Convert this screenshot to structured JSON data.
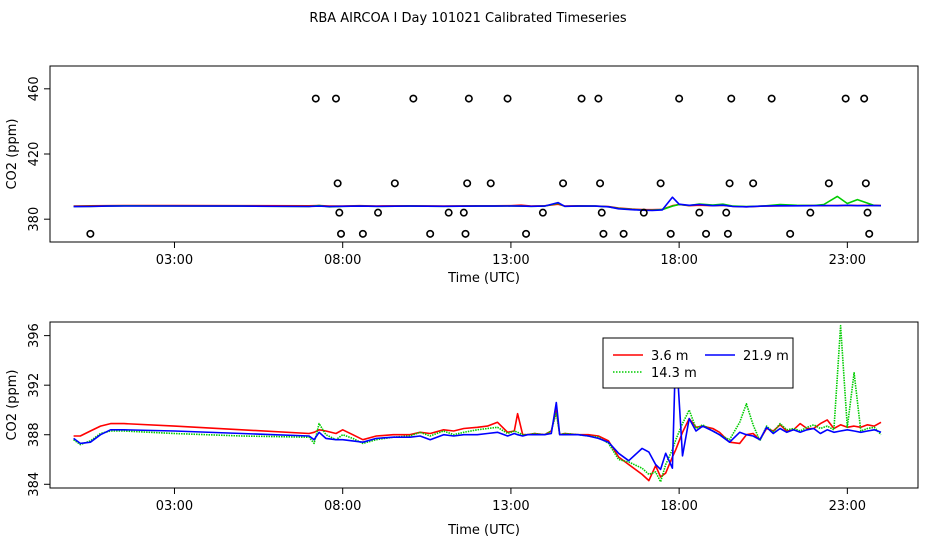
{
  "title": "RBA AIRCOA I  Day 101021  Calibrated Timeseries",
  "chart_data": [
    {
      "type": "line",
      "xlabel": "Time (UTC)",
      "ylabel": "CO2 (ppm)",
      "xlim": [
        -0.7,
        25.1
      ],
      "ylim": [
        366,
        474
      ],
      "xticks": [
        3,
        8,
        13,
        18,
        23
      ],
      "xtick_labels": [
        "03:00",
        "08:00",
        "13:00",
        "18:00",
        "23:00"
      ],
      "yticks": [
        380,
        420,
        460
      ],
      "ytick_labels": [
        "380",
        "420",
        "460"
      ],
      "grid": false,
      "calibration_points": [
        {
          "x": 0.5,
          "y": 371
        },
        {
          "x": 7.2,
          "y": 454
        },
        {
          "x": 7.8,
          "y": 454
        },
        {
          "x": 7.85,
          "y": 402
        },
        {
          "x": 7.9,
          "y": 384
        },
        {
          "x": 7.95,
          "y": 371
        },
        {
          "x": 8.6,
          "y": 371
        },
        {
          "x": 9.05,
          "y": 384
        },
        {
          "x": 9.55,
          "y": 402
        },
        {
          "x": 10.1,
          "y": 454
        },
        {
          "x": 10.6,
          "y": 371
        },
        {
          "x": 11.15,
          "y": 384
        },
        {
          "x": 11.6,
          "y": 384
        },
        {
          "x": 11.65,
          "y": 371
        },
        {
          "x": 11.7,
          "y": 402
        },
        {
          "x": 11.75,
          "y": 454
        },
        {
          "x": 12.4,
          "y": 402
        },
        {
          "x": 12.9,
          "y": 454
        },
        {
          "x": 13.45,
          "y": 371
        },
        {
          "x": 13.95,
          "y": 384
        },
        {
          "x": 14.55,
          "y": 402
        },
        {
          "x": 15.1,
          "y": 454
        },
        {
          "x": 15.6,
          "y": 454
        },
        {
          "x": 15.65,
          "y": 402
        },
        {
          "x": 15.7,
          "y": 384
        },
        {
          "x": 15.75,
          "y": 371
        },
        {
          "x": 16.35,
          "y": 371
        },
        {
          "x": 16.95,
          "y": 384
        },
        {
          "x": 17.45,
          "y": 402
        },
        {
          "x": 17.75,
          "y": 371
        },
        {
          "x": 18.0,
          "y": 454
        },
        {
          "x": 18.6,
          "y": 384
        },
        {
          "x": 18.8,
          "y": 371
        },
        {
          "x": 19.4,
          "y": 384
        },
        {
          "x": 19.45,
          "y": 371
        },
        {
          "x": 19.5,
          "y": 402
        },
        {
          "x": 19.55,
          "y": 454
        },
        {
          "x": 20.2,
          "y": 402
        },
        {
          "x": 20.75,
          "y": 454
        },
        {
          "x": 21.3,
          "y": 371
        },
        {
          "x": 21.9,
          "y": 384
        },
        {
          "x": 22.45,
          "y": 402
        },
        {
          "x": 22.95,
          "y": 454
        },
        {
          "x": 23.5,
          "y": 454
        },
        {
          "x": 23.55,
          "y": 402
        },
        {
          "x": 23.6,
          "y": 384
        },
        {
          "x": 23.65,
          "y": 371
        }
      ],
      "series": [
        {
          "name": "3.6 m",
          "color": "#ff0000",
          "x": [
            0,
            0.5,
            1,
            1.5,
            3,
            5,
            7,
            7.3,
            7.6,
            8,
            8.5,
            9,
            10,
            11,
            12,
            12.5,
            13,
            13.3,
            13.6,
            14,
            14.4,
            14.6,
            15,
            15.5,
            15.9,
            16.2,
            16.6,
            16.9,
            17.2,
            17.5,
            17.8,
            18.0,
            18.3,
            18.6,
            19.0,
            19.3,
            19.6,
            20.0,
            20.5,
            21,
            21.5,
            22,
            22.3,
            22.7,
            23,
            23.3,
            23.8,
            24
          ],
          "y": [
            388,
            388.2,
            388.3,
            388.4,
            388.4,
            388.3,
            388.2,
            388.4,
            388.0,
            388.1,
            388.3,
            388.1,
            388.2,
            388.1,
            388.2,
            388.2,
            388.3,
            388.6,
            388.1,
            388.2,
            389.2,
            388.1,
            388.2,
            388.1,
            387.8,
            386.8,
            386.2,
            385.9,
            385.8,
            386.0,
            388.3,
            389.0,
            388.3,
            388.6,
            388.3,
            388.5,
            387.9,
            387.6,
            388.0,
            388.2,
            388.3,
            388.4,
            388.3,
            388.4,
            388.5,
            388.4,
            388.5,
            388.4
          ]
        },
        {
          "name": "14.3 m",
          "color": "#00cc00",
          "x": [
            0,
            0.5,
            1,
            1.5,
            3,
            5,
            7,
            7.3,
            7.6,
            8,
            8.5,
            9,
            10,
            11,
            12,
            12.5,
            13,
            13.3,
            13.6,
            14,
            14.4,
            14.6,
            15,
            15.5,
            15.9,
            16.2,
            16.6,
            16.9,
            17.2,
            17.5,
            17.8,
            18.0,
            18.3,
            18.6,
            19.0,
            19.3,
            19.6,
            20.0,
            20.5,
            21,
            21.5,
            22,
            22.3,
            22.7,
            23,
            23.3,
            23.8,
            24
          ],
          "y": [
            387.8,
            387.9,
            388.0,
            388.2,
            388.1,
            388.0,
            387.8,
            388.4,
            387.6,
            387.9,
            388.0,
            387.9,
            388.0,
            387.9,
            388.0,
            388.0,
            388.1,
            388.0,
            387.9,
            388.0,
            389.8,
            387.9,
            388.0,
            388.0,
            387.6,
            386.6,
            386.0,
            385.6,
            385.5,
            385.9,
            388.0,
            389.0,
            388.4,
            389.3,
            388.7,
            389.2,
            388.0,
            387.7,
            388.1,
            389.0,
            388.5,
            388.4,
            389.0,
            394.0,
            389.6,
            392.0,
            388.4,
            388.3
          ]
        },
        {
          "name": "21.9 m",
          "color": "#0000ff",
          "x": [
            0,
            0.5,
            1,
            1.5,
            3,
            5,
            7,
            7.3,
            7.6,
            8,
            8.5,
            9,
            10,
            11,
            12,
            12.5,
            13,
            13.3,
            13.6,
            14,
            14.4,
            14.6,
            15,
            15.5,
            15.9,
            16.2,
            16.6,
            16.9,
            17.2,
            17.5,
            17.8,
            18.0,
            18.3,
            18.6,
            19.0,
            19.3,
            19.6,
            20.0,
            20.5,
            21,
            21.5,
            22,
            22.3,
            22.7,
            23,
            23.3,
            23.8,
            24
          ],
          "y": [
            387.7,
            387.8,
            388.0,
            388.1,
            388.1,
            388.0,
            387.8,
            388.0,
            387.7,
            387.9,
            388.0,
            387.9,
            388.0,
            387.9,
            388.0,
            388.0,
            388.1,
            388.0,
            387.9,
            388.0,
            390.2,
            387.9,
            388.0,
            388.0,
            387.6,
            386.4,
            385.8,
            385.5,
            385.3,
            385.7,
            393.5,
            389.2,
            388.5,
            389.0,
            388.3,
            388.6,
            387.8,
            387.6,
            388.0,
            388.3,
            388.2,
            388.3,
            388.4,
            388.3,
            388.5,
            388.3,
            388.4,
            388.3
          ]
        }
      ]
    },
    {
      "type": "line",
      "xlabel": "Time (UTC)",
      "ylabel": "CO2 (ppm)",
      "xlim": [
        -0.7,
        25.1
      ],
      "ylim": [
        383.7,
        397.1
      ],
      "xticks": [
        3,
        8,
        13,
        18,
        23
      ],
      "xtick_labels": [
        "03:00",
        "08:00",
        "13:00",
        "18:00",
        "23:00"
      ],
      "yticks": [
        384,
        388,
        392,
        396
      ],
      "ytick_labels": [
        "384",
        "388",
        "392",
        "396"
      ],
      "grid": false,
      "legend": "top-right",
      "series": [
        {
          "name": "3.6 m",
          "color": "#ff0000",
          "x": [
            0,
            0.2,
            0.5,
            0.8,
            1.1,
            1.5,
            3,
            5,
            7,
            7.15,
            7.3,
            7.5,
            7.8,
            8.0,
            8.3,
            8.6,
            9,
            9.5,
            10,
            10.3,
            10.6,
            11,
            11.3,
            11.6,
            12,
            12.3,
            12.6,
            12.9,
            13.1,
            13.2,
            13.35,
            13.5,
            13.7,
            14,
            14.2,
            14.35,
            14.45,
            14.6,
            15,
            15.3,
            15.6,
            15.9,
            16.2,
            16.5,
            16.9,
            17.1,
            17.3,
            17.45,
            17.6,
            17.8,
            17.9,
            18.1,
            18.3,
            18.5,
            18.7,
            19.0,
            19.2,
            19.5,
            19.8,
            20.0,
            20.2,
            20.4,
            20.6,
            20.8,
            21.0,
            21.2,
            21.4,
            21.6,
            21.8,
            22.0,
            22.2,
            22.4,
            22.6,
            22.8,
            23.0,
            23.2,
            23.4,
            23.6,
            23.8,
            24.0
          ],
          "y": [
            387.9,
            387.9,
            388.3,
            388.7,
            388.9,
            388.9,
            388.7,
            388.4,
            388.1,
            388.2,
            388.4,
            388.3,
            388.1,
            388.4,
            388.0,
            387.6,
            387.9,
            388.0,
            388.0,
            388.2,
            388.1,
            388.4,
            388.3,
            388.5,
            388.6,
            388.7,
            389.0,
            388.2,
            388.3,
            389.7,
            388.0,
            388.0,
            388.1,
            388.0,
            388.3,
            390.0,
            388.0,
            388.1,
            388.0,
            388.0,
            387.9,
            387.5,
            386.2,
            385.6,
            384.8,
            384.3,
            385.5,
            384.6,
            384.9,
            386.2,
            386.8,
            388.2,
            389.3,
            388.6,
            388.7,
            388.5,
            388.2,
            387.4,
            387.3,
            388.0,
            388.1,
            387.6,
            388.5,
            388.3,
            388.8,
            388.3,
            388.4,
            388.9,
            388.5,
            388.5,
            388.9,
            389.2,
            388.5,
            388.8,
            388.6,
            388.7,
            388.6,
            388.8,
            388.7,
            389.0
          ]
        },
        {
          "name": "14.3 m",
          "color": "#00cc00",
          "x": [
            0,
            0.2,
            0.5,
            0.8,
            1.1,
            1.5,
            3,
            5,
            7,
            7.15,
            7.3,
            7.5,
            7.8,
            8.0,
            8.3,
            8.6,
            9,
            9.5,
            10,
            10.3,
            10.6,
            11,
            11.3,
            11.6,
            12,
            12.3,
            12.6,
            12.9,
            13.1,
            13.2,
            13.35,
            13.5,
            13.7,
            14,
            14.2,
            14.35,
            14.45,
            14.6,
            15,
            15.3,
            15.6,
            15.9,
            16.2,
            16.5,
            16.9,
            17.1,
            17.3,
            17.45,
            17.6,
            17.8,
            17.9,
            18.1,
            18.3,
            18.5,
            18.7,
            19.0,
            19.2,
            19.5,
            19.8,
            20.0,
            20.2,
            20.4,
            20.6,
            20.8,
            21.0,
            21.2,
            21.4,
            21.6,
            21.8,
            22.0,
            22.2,
            22.4,
            22.6,
            22.8,
            23.0,
            23.2,
            23.4,
            23.6,
            23.8,
            24.0
          ],
          "y": [
            387.6,
            387.2,
            387.5,
            388.1,
            388.3,
            388.3,
            388.1,
            387.9,
            387.8,
            387.3,
            388.9,
            388.0,
            387.6,
            388.0,
            387.7,
            387.3,
            387.6,
            387.8,
            387.9,
            388.2,
            387.9,
            388.3,
            388.0,
            388.2,
            388.4,
            388.5,
            388.6,
            388.1,
            388.3,
            388.2,
            388.0,
            388.0,
            388.1,
            388.0,
            388.3,
            389.8,
            388.0,
            388.1,
            388.0,
            387.9,
            387.8,
            387.3,
            386.0,
            385.8,
            385.3,
            384.8,
            385.0,
            384.2,
            385.6,
            386.8,
            387.6,
            388.9,
            390.0,
            388.5,
            388.8,
            388.3,
            388.0,
            387.6,
            389.0,
            390.5,
            388.8,
            387.5,
            388.7,
            388.2,
            388.9,
            388.4,
            388.5,
            388.3,
            388.6,
            388.8,
            388.5,
            388.7,
            388.4,
            396.8,
            388.6,
            393.0,
            388.3,
            388.5,
            388.6,
            388.0
          ]
        },
        {
          "name": "21.9 m",
          "color": "#0000ff",
          "x": [
            0,
            0.2,
            0.5,
            0.8,
            1.1,
            1.5,
            3,
            5,
            7,
            7.15,
            7.3,
            7.5,
            7.8,
            8.0,
            8.3,
            8.6,
            9,
            9.5,
            10,
            10.3,
            10.6,
            11,
            11.3,
            11.6,
            12,
            12.3,
            12.6,
            12.9,
            13.1,
            13.2,
            13.35,
            13.5,
            13.7,
            14,
            14.2,
            14.35,
            14.45,
            14.6,
            15,
            15.3,
            15.6,
            15.9,
            16.2,
            16.5,
            16.9,
            17.1,
            17.3,
            17.45,
            17.6,
            17.8,
            17.9,
            18.1,
            18.3,
            18.5,
            18.7,
            19.0,
            19.2,
            19.5,
            19.8,
            20.0,
            20.2,
            20.4,
            20.6,
            20.8,
            21.0,
            21.2,
            21.4,
            21.6,
            21.8,
            22.0,
            22.2,
            22.4,
            22.6,
            22.8,
            23.0,
            23.2,
            23.4,
            23.6,
            23.8,
            24.0
          ],
          "y": [
            387.7,
            387.3,
            387.4,
            388.0,
            388.4,
            388.4,
            388.3,
            388.1,
            387.9,
            387.6,
            388.2,
            387.7,
            387.6,
            387.6,
            387.5,
            387.4,
            387.7,
            387.8,
            387.8,
            387.9,
            387.6,
            388.0,
            387.9,
            388.0,
            388.0,
            388.1,
            388.2,
            387.9,
            388.1,
            388.0,
            387.9,
            388.0,
            388.0,
            388.0,
            388.1,
            390.6,
            388.0,
            388.0,
            388.0,
            387.9,
            387.7,
            387.4,
            386.5,
            385.9,
            386.9,
            386.6,
            385.6,
            385.2,
            386.5,
            385.3,
            395.2,
            386.3,
            389.3,
            388.3,
            388.7,
            388.3,
            388.0,
            387.4,
            388.2,
            388.0,
            387.9,
            387.6,
            388.6,
            388.1,
            388.5,
            388.2,
            388.4,
            388.2,
            388.4,
            388.5,
            388.1,
            388.4,
            388.2,
            388.3,
            388.4,
            388.3,
            388.2,
            388.3,
            388.4,
            388.2
          ]
        }
      ]
    }
  ]
}
